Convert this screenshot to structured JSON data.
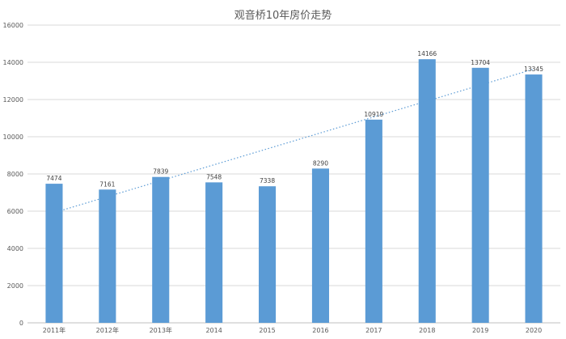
{
  "chart_data": {
    "type": "bar",
    "title": "观音桥10年房价走势",
    "categories": [
      "2011年",
      "2012年",
      "2013年",
      "2014",
      "2015",
      "2016",
      "2017",
      "2018",
      "2019",
      "2020"
    ],
    "series": [
      {
        "values": [
          7474,
          7161,
          7839,
          7548,
          7338,
          8290,
          10919,
          14166,
          13704,
          13345
        ]
      }
    ],
    "ylim": [
      0,
      16000
    ],
    "yticks": [
      0,
      2000,
      4000,
      6000,
      8000,
      10000,
      12000,
      14000,
      16000
    ],
    "grid": true,
    "data_labels": true,
    "trendline": {
      "type": "linear",
      "style": "dotted"
    },
    "bar_color": "#5b9bd5",
    "legend": "none"
  }
}
